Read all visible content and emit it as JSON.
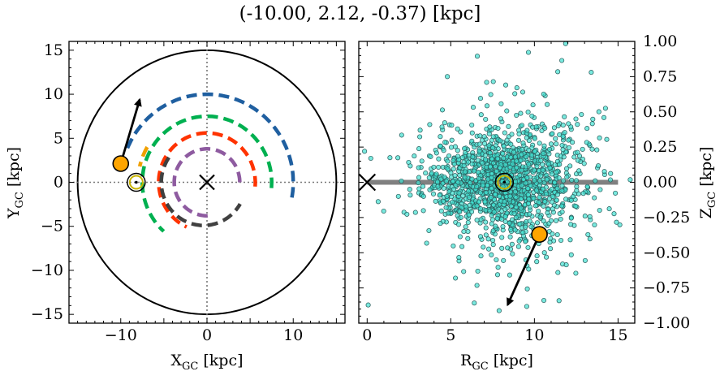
{
  "figure": {
    "title": "(-10.00, 2.12, -0.37) [kpc]"
  },
  "chart_data": [
    {
      "type": "line",
      "panel": "left",
      "xlabel": "X_GC [kpc]",
      "ylabel": "Y_GC [kpc]",
      "xlim": [
        -16,
        16
      ],
      "ylim": [
        -16,
        16
      ],
      "xticks": [
        -10,
        -5,
        0,
        5,
        10,
        15
      ],
      "xtick_labels": [
        "−10",
        "0",
        "10"
      ],
      "xtick_label_values": [
        -10,
        0,
        10
      ],
      "yticks": [
        -15,
        -10,
        -5,
        0,
        5,
        10,
        15
      ],
      "ytick_labels": [
        "−15",
        "−10",
        "−5",
        "0",
        "5",
        "10",
        "15"
      ],
      "boundary_circle_radius": 15,
      "galactic_center": [
        0,
        0
      ],
      "sun_position": [
        -8.2,
        0
      ],
      "object_position": [
        -10.0,
        2.12
      ],
      "velocity_arrow": {
        "from": [
          -10.0,
          2.12
        ],
        "to": [
          -7.8,
          9.4
        ]
      },
      "spiral_arms": [
        {
          "color": "#1f5fa0",
          "radius": 10.0,
          "theta_range_deg": [
            -10,
            158
          ]
        },
        {
          "color": "#00b050",
          "radius": 7.5,
          "theta_range_deg": [
            -5,
            228
          ]
        },
        {
          "color": "#f0a000",
          "radius": 8.0,
          "theta_range_deg": [
            150,
            167
          ]
        },
        {
          "color": "#ff3300",
          "radius": 5.6,
          "theta_range_deg": [
            -5,
            245
          ]
        },
        {
          "color": "#8e5ba0",
          "radius": 3.8,
          "theta_range_deg": [
            0,
            272
          ]
        },
        {
          "color": "#404040",
          "radius": 4.9,
          "theta_range_deg": [
            145,
            330
          ],
          "center": [
            -0.4,
            0
          ]
        }
      ]
    },
    {
      "type": "scatter",
      "panel": "right",
      "xlabel": "R_GC [kpc]",
      "ylabel": "Z_GC [kpc]",
      "xlim": [
        -0.5,
        16
      ],
      "ylim": [
        -1.0,
        1.0
      ],
      "xticks": [
        0,
        5,
        10,
        15
      ],
      "xtick_labels": [
        "0",
        "5",
        "10",
        "15"
      ],
      "yticks": [
        -1.0,
        -0.75,
        -0.5,
        -0.25,
        0.0,
        0.25,
        0.5,
        0.75,
        1.0
      ],
      "ytick_labels": [
        "−1.00",
        "−0.75",
        "−0.50",
        "−0.25",
        "0.00",
        "0.25",
        "0.50",
        "0.75",
        "1.00"
      ],
      "disk_line": {
        "x": [
          0,
          15
        ],
        "y": 0
      },
      "galactic_center": [
        0,
        0
      ],
      "sun_position": [
        8.2,
        0
      ],
      "object_position": [
        10.3,
        -0.37
      ],
      "velocity_arrow": {
        "from": [
          10.3,
          -0.37
        ],
        "to": [
          8.4,
          -0.87
        ]
      },
      "scatter_cloud": {
        "color": "#40e0d0",
        "edgecolor": "#2a5a5a",
        "count": 1500,
        "center": [
          8.2,
          0
        ],
        "spread": [
          2.4,
          0.14
        ]
      }
    }
  ]
}
